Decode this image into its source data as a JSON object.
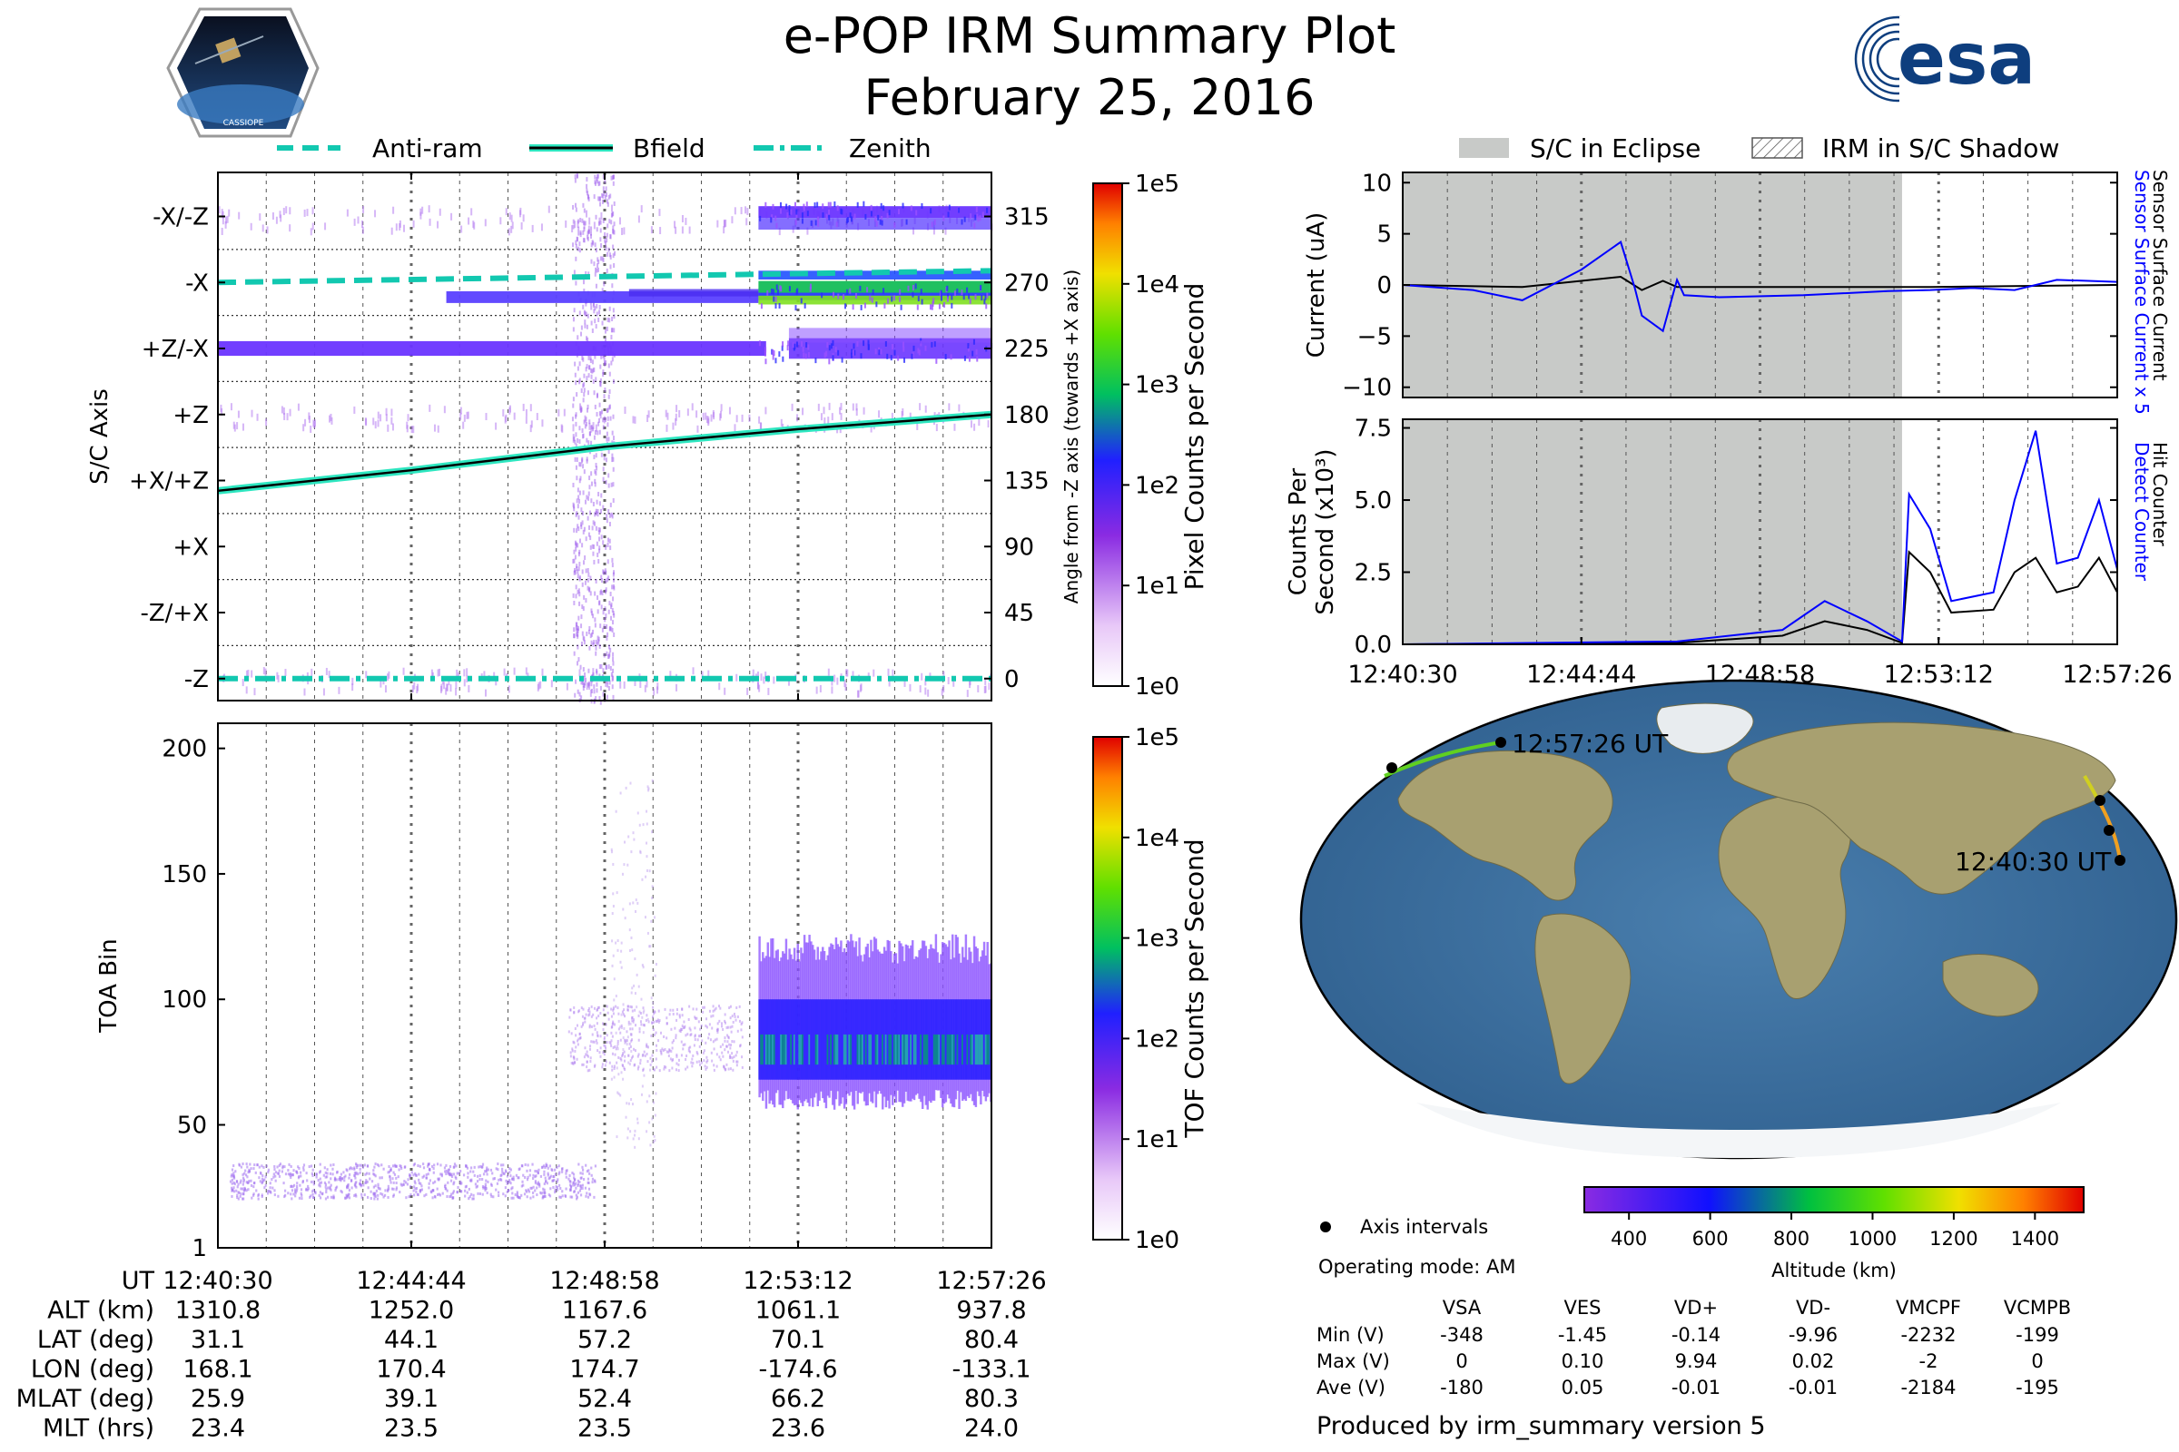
{
  "title": "e-POP IRM Summary Plot",
  "date": "February 25, 2016",
  "esa_logo": "esa",
  "cassiope_badge": "CASSIOPE",
  "legend_top": [
    "Anti-ram",
    "Bfield",
    "Zenith"
  ],
  "legend_right": [
    "S/C in Eclipse",
    "IRM in S/C Shadow"
  ],
  "colors": {
    "eclipse": "#c8cac8",
    "bfield": "#000000",
    "bfield_halo": "#2ee6c0",
    "sensor_current": "#0000ff",
    "surface_current": "#000000",
    "teal_lines": "#12c8b0"
  },
  "time_ticks": [
    "12:40:30",
    "12:44:44",
    "12:48:58",
    "12:53:12",
    "12:57:26"
  ],
  "panel_axis": {
    "ylabel": "S/C Axis",
    "yticks_left": [
      "-X/-Z",
      "-X",
      "+Z/-X",
      "+Z",
      "+X/+Z",
      "+X",
      "-Z/+X",
      "-Z"
    ],
    "yticks_right": [
      "315",
      "270",
      "225",
      "180",
      "135",
      "90",
      "45",
      "0"
    ],
    "ylabel_right": "Angle from -Z axis (towards +X axis)",
    "colorbar_label": "Pixel Counts per Second",
    "colorbar_ticks": [
      "1e5",
      "1e4",
      "1e3",
      "1e2",
      "1e1",
      "1e0"
    ]
  },
  "panel_toa": {
    "ylabel": "TOA Bin",
    "yticks": [
      "200",
      "150",
      "100",
      "50",
      "1"
    ],
    "colorbar_label": "TOF Counts per Second",
    "colorbar_ticks": [
      "1e5",
      "1e4",
      "1e3",
      "1e2",
      "1e1",
      "1e0"
    ]
  },
  "panel_current": {
    "ylabel": "Current (uA)",
    "yticks": [
      "10",
      "5",
      "0",
      "−5",
      "−10"
    ],
    "right_label_blue": "Sensor Surface Current x 5",
    "right_label_black": "Sensor Surface Current"
  },
  "panel_counts": {
    "ylabel_line1": "Counts Per",
    "ylabel_line2": "Second (x10³)",
    "yticks": [
      "7.5",
      "5.0",
      "2.5",
      "0.0"
    ],
    "right_label_blue": "Detect Counter",
    "right_label_black": "Hit Counter"
  },
  "map": {
    "start_label": "12:40:30 UT",
    "end_label": "12:57:26 UT",
    "legend_axis_intervals": "Axis intervals",
    "altitude_label": "Altitude (km)",
    "altitude_ticks": [
      "400",
      "600",
      "800",
      "1000",
      "1200",
      "1400"
    ]
  },
  "operating_mode": "Operating mode: AM",
  "stats": {
    "columns": [
      "VSA",
      "VES",
      "VD+",
      "VD-",
      "VMCPF",
      "VCMPB"
    ],
    "rows": [
      {
        "label": "Min (V)",
        "values": [
          "-348",
          "-1.45",
          "-0.14",
          "-9.96",
          "-2232",
          "-199"
        ]
      },
      {
        "label": "Max (V)",
        "values": [
          "0",
          "0.10",
          "9.94",
          "0.02",
          "-2",
          "0"
        ]
      },
      {
        "label": "Ave (V)",
        "values": [
          "-180",
          "0.05",
          "-0.01",
          "-0.01",
          "-2184",
          "-195"
        ]
      }
    ]
  },
  "ephemeris": {
    "rows": [
      {
        "label": "UT",
        "values": [
          "12:40:30",
          "12:44:44",
          "12:48:58",
          "12:53:12",
          "12:57:26"
        ]
      },
      {
        "label": "ALT (km)",
        "values": [
          "1310.8",
          "1252.0",
          "1167.6",
          "1061.1",
          "937.8"
        ]
      },
      {
        "label": "LAT (deg)",
        "values": [
          "31.1",
          "44.1",
          "57.2",
          "70.1",
          "80.4"
        ]
      },
      {
        "label": "LON (deg)",
        "values": [
          "168.1",
          "170.4",
          "174.7",
          "-174.6",
          "-133.1"
        ]
      },
      {
        "label": "MLAT (deg)",
        "values": [
          "25.9",
          "39.1",
          "52.4",
          "66.2",
          "80.3"
        ]
      },
      {
        "label": "MLT (hrs)",
        "values": [
          "23.4",
          "23.5",
          "23.5",
          "23.6",
          "24.0"
        ]
      }
    ]
  },
  "footer": "Produced by irm_summary version 5",
  "chart_data": [
    {
      "type": "heatmap",
      "title": "",
      "ylabel": "S/C Axis",
      "ylim": [
        0,
        360
      ],
      "series": [
        {
          "name": "Anti-ram",
          "x": [
            "12:40:30",
            "12:57:26"
          ],
          "values": [
            270,
            278
          ]
        },
        {
          "name": "Bfield",
          "x": [
            "12:40:30",
            "12:44:44",
            "12:48:58",
            "12:53:12",
            "12:57:26"
          ],
          "values": [
            128,
            142,
            158,
            170,
            180
          ]
        },
        {
          "name": "Zenith",
          "x": [
            "12:40:30",
            "12:57:26"
          ],
          "values": [
            0,
            0
          ]
        }
      ]
    },
    {
      "type": "heatmap",
      "ylabel": "TOA Bin",
      "ylim": [
        1,
        210
      ]
    },
    {
      "type": "line",
      "ylabel": "Current (uA)",
      "ylim": [
        -11,
        11
      ],
      "series": [
        {
          "name": "Sensor Surface Current x 5",
          "x": [
            "12:40:30",
            "12:42:10",
            "12:43:20",
            "12:44:44",
            "12:45:40",
            "12:46:00",
            "12:46:10",
            "12:46:40",
            "12:47:00",
            "12:47:10",
            "12:48:00",
            "12:50:00",
            "12:52:00",
            "12:53:00",
            "12:54:00",
            "12:55:00",
            "12:56:00",
            "12:57:26"
          ],
          "values": [
            0.0,
            -0.5,
            -1.5,
            1.5,
            4.2,
            -0.3,
            -3.0,
            -4.5,
            0.5,
            -1.0,
            -1.2,
            -1.0,
            -0.6,
            -0.5,
            -0.3,
            -0.5,
            0.5,
            0.3
          ]
        },
        {
          "name": "Sensor Surface Current",
          "x": [
            "12:40:30",
            "12:43:20",
            "12:45:40",
            "12:46:10",
            "12:46:40",
            "12:47:00",
            "12:50:00",
            "12:53:00",
            "12:57:26"
          ],
          "values": [
            0.0,
            -0.2,
            0.8,
            -0.5,
            0.4,
            -0.2,
            -0.2,
            -0.2,
            0.0
          ]
        }
      ]
    },
    {
      "type": "line",
      "ylabel": "Counts Per Second (x10³)",
      "ylim": [
        0,
        7.8
      ],
      "series": [
        {
          "name": "Detect Counter",
          "x": [
            "12:40:30",
            "12:47:00",
            "12:49:30",
            "12:50:30",
            "12:51:30",
            "12:52:20",
            "12:52:30",
            "12:53:00",
            "12:53:30",
            "12:54:30",
            "12:55:00",
            "12:55:30",
            "12:56:00",
            "12:56:30",
            "12:57:00",
            "12:57:26"
          ],
          "values": [
            0.0,
            0.1,
            0.5,
            1.5,
            0.8,
            0.1,
            5.2,
            4.0,
            1.5,
            1.8,
            5.0,
            7.4,
            2.8,
            3.0,
            5.0,
            2.6
          ]
        },
        {
          "name": "Hit Counter",
          "x": [
            "12:40:30",
            "12:47:00",
            "12:49:30",
            "12:50:30",
            "12:51:30",
            "12:52:20",
            "12:52:30",
            "12:53:00",
            "12:53:30",
            "12:54:30",
            "12:55:00",
            "12:55:30",
            "12:56:00",
            "12:56:30",
            "12:57:00",
            "12:57:26"
          ],
          "values": [
            0.0,
            0.05,
            0.3,
            0.8,
            0.5,
            0.05,
            3.2,
            2.5,
            1.1,
            1.2,
            2.5,
            3.0,
            1.8,
            2.0,
            3.0,
            1.8
          ]
        }
      ]
    }
  ]
}
